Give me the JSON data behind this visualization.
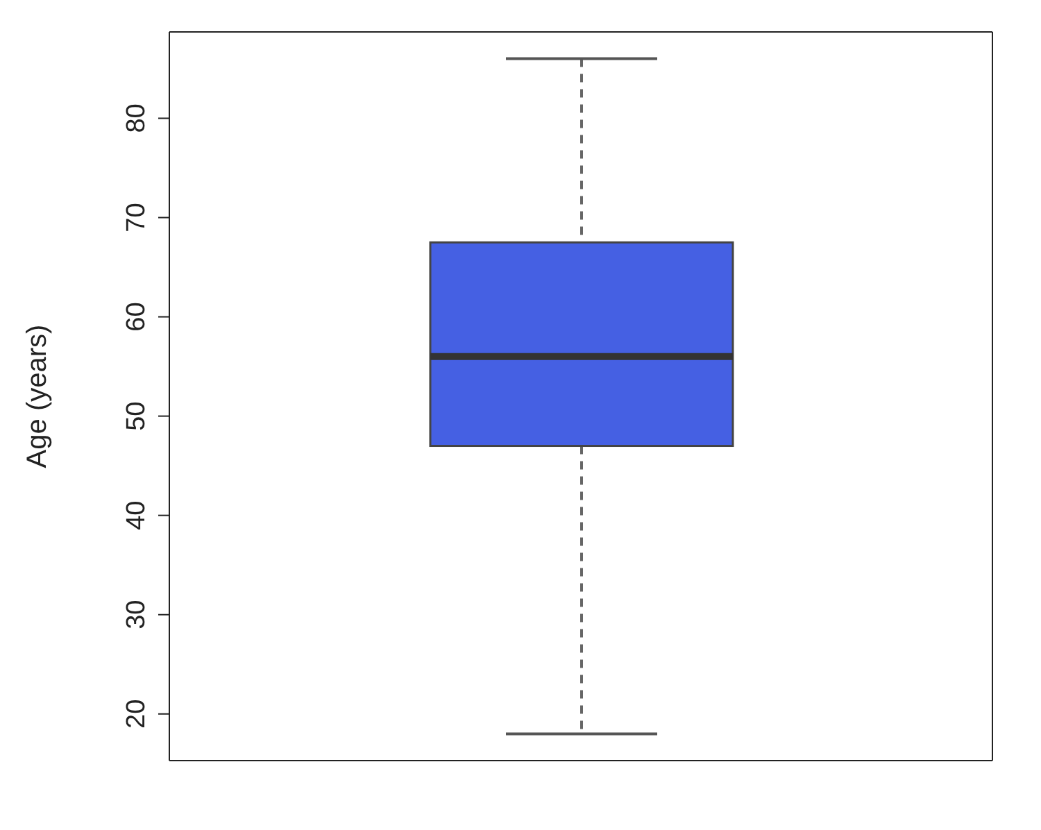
{
  "chart_data": {
    "type": "box",
    "ylabel": "Age (years)",
    "categories": [
      null
    ],
    "color": "#4560e3",
    "boxes": [
      {
        "low": 18,
        "q1": 47,
        "median": 56,
        "q3": 67.5,
        "high": 86
      }
    ],
    "ylim": [
      15.3,
      88.7
    ],
    "yticks": [
      20,
      30,
      40,
      50,
      60,
      70,
      80
    ],
    "tick_labels": "y",
    "grid": false,
    "line_style": "dashed"
  }
}
